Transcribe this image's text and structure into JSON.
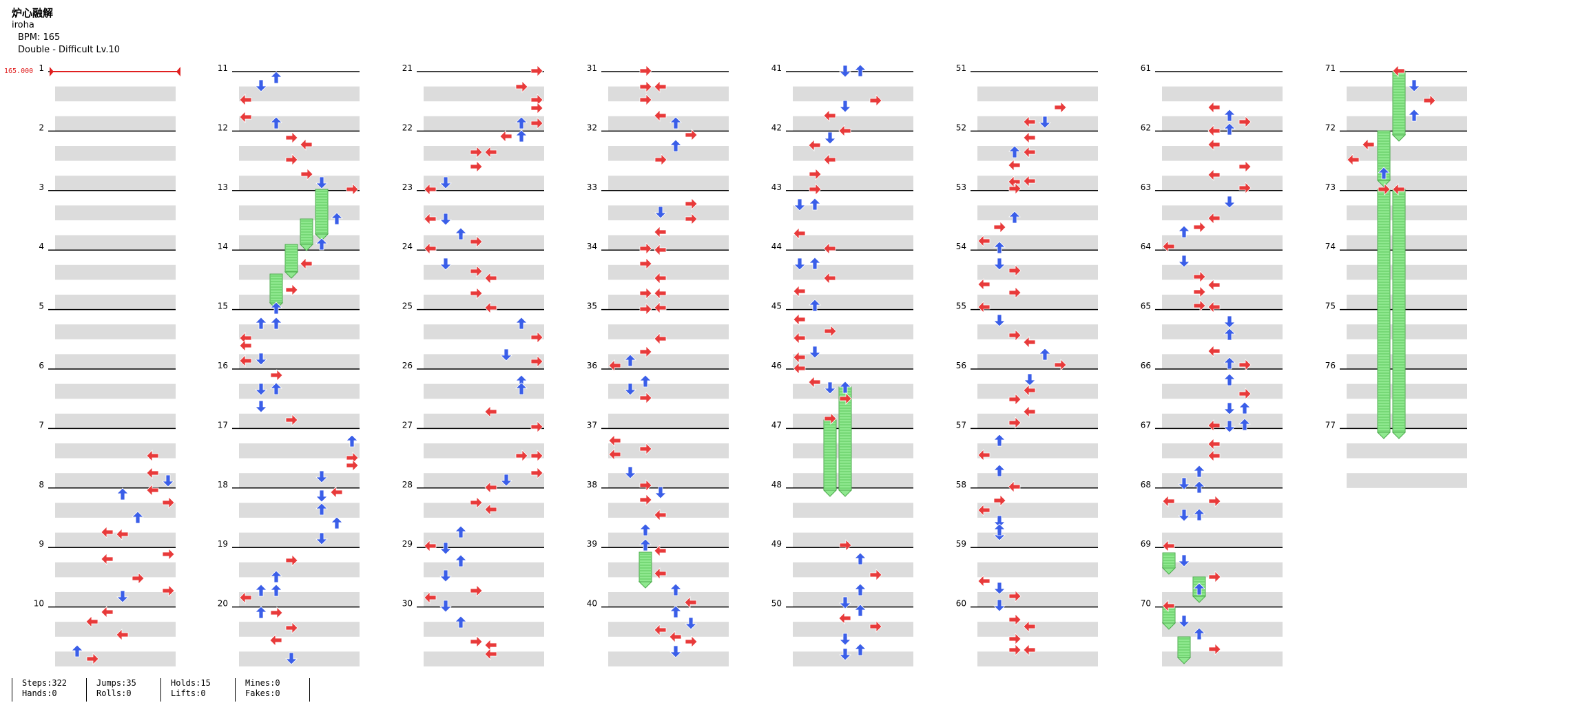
{
  "song": {
    "title": "炉心融解",
    "artist": "iroha",
    "bpm_label": "BPM: 165",
    "chart_label": "Double - Difficult Lv.10"
  },
  "bpm_marker": "165.000",
  "colors": {
    "left_right_arrow": "#e83a3a",
    "up_down_arrow": "#3a5ee8",
    "hold": "#8fe88f",
    "stripe": "#dcdcdc",
    "measure_line": "#000000",
    "bpm": "#e02020"
  },
  "measure_numbers": [
    "1",
    "2",
    "3",
    "4",
    "5",
    "6",
    "7",
    "8",
    "9",
    "10",
    "11",
    "12",
    "13",
    "14",
    "15",
    "16",
    "17",
    "18",
    "19",
    "20",
    "21",
    "22",
    "23",
    "24",
    "25",
    "26",
    "27",
    "28",
    "29",
    "30",
    "31",
    "32",
    "33",
    "34",
    "35",
    "36",
    "37",
    "38",
    "39",
    "40",
    "41",
    "42",
    "43",
    "44",
    "45",
    "46",
    "47",
    "48",
    "49",
    "50",
    "51",
    "52",
    "53",
    "54",
    "55",
    "56",
    "57",
    "58",
    "59",
    "60",
    "61",
    "62",
    "63",
    "64",
    "65",
    "66",
    "67",
    "68",
    "69",
    "70",
    "71",
    "72",
    "73",
    "74",
    "75",
    "76",
    "77"
  ],
  "stats": [
    {
      "a": "Steps:322",
      "b": "Hands:0"
    },
    {
      "a": "Jumps:35",
      "b": "Rolls:0"
    },
    {
      "a": "Holds:15",
      "b": "Lifts:0"
    },
    {
      "a": "Mines:0",
      "b": "Fakes:0"
    }
  ]
}
